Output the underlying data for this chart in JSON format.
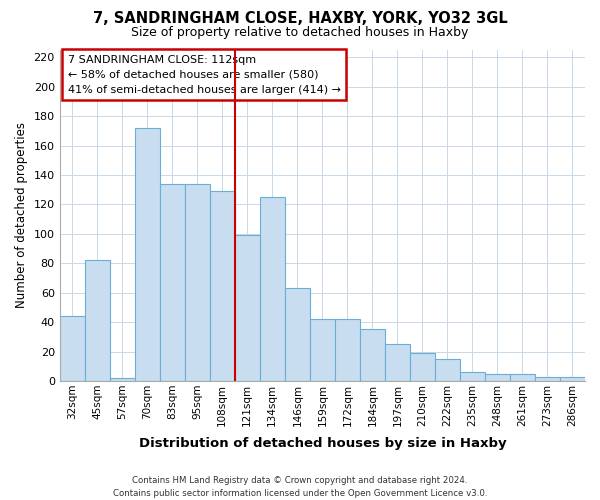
{
  "title": "7, SANDRINGHAM CLOSE, HAXBY, YORK, YO32 3GL",
  "subtitle": "Size of property relative to detached houses in Haxby",
  "xlabel": "Distribution of detached houses by size in Haxby",
  "ylabel": "Number of detached properties",
  "bar_labels": [
    "32sqm",
    "45sqm",
    "57sqm",
    "70sqm",
    "83sqm",
    "95sqm",
    "108sqm",
    "121sqm",
    "134sqm",
    "146sqm",
    "159sqm",
    "172sqm",
    "184sqm",
    "197sqm",
    "210sqm",
    "222sqm",
    "235sqm",
    "248sqm",
    "261sqm",
    "273sqm",
    "286sqm"
  ],
  "bar_values": [
    44,
    82,
    2,
    172,
    134,
    134,
    129,
    99,
    125,
    63,
    42,
    42,
    35,
    25,
    19,
    15,
    6,
    5,
    5,
    3,
    3
  ],
  "bar_color": "#c8ddf0",
  "bar_edge_color": "#6aaed6",
  "vline_x_idx": 7,
  "vline_color": "#cc0000",
  "annotation_title": "7 SANDRINGHAM CLOSE: 112sqm",
  "annotation_line1": "← 58% of detached houses are smaller (580)",
  "annotation_line2": "41% of semi-detached houses are larger (414) →",
  "annotation_box_color": "#ffffff",
  "annotation_box_edge": "#cc0000",
  "ylim": [
    0,
    225
  ],
  "yticks": [
    0,
    20,
    40,
    60,
    80,
    100,
    120,
    140,
    160,
    180,
    200,
    220
  ],
  "footer1": "Contains HM Land Registry data © Crown copyright and database right 2024.",
  "footer2": "Contains public sector information licensed under the Open Government Licence v3.0.",
  "background_color": "#ffffff",
  "grid_color": "#c8d8e8"
}
